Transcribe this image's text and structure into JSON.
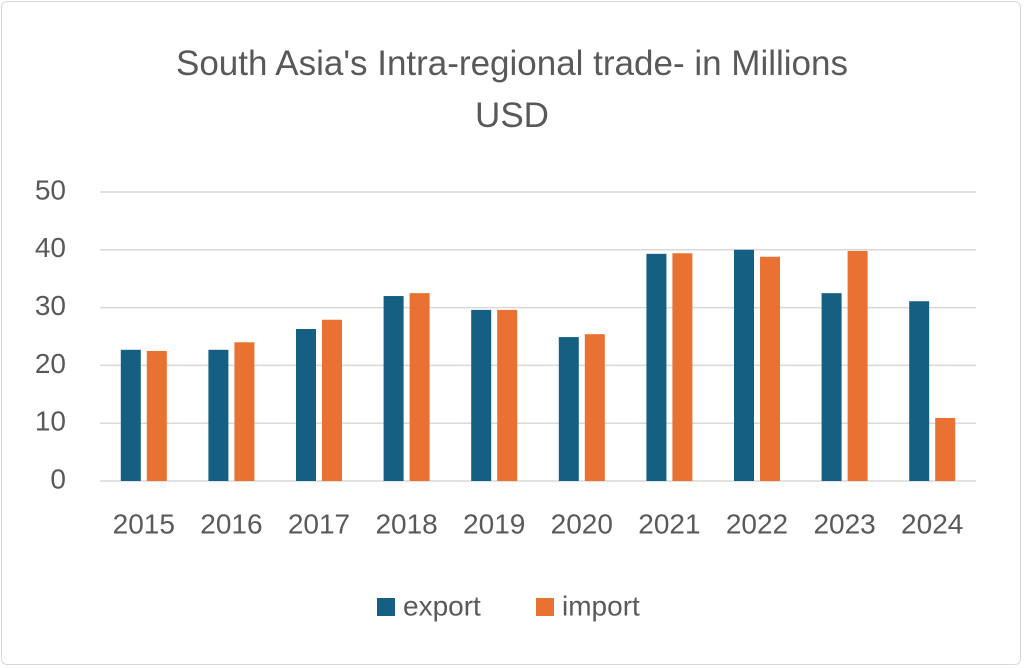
{
  "chart_data": {
    "type": "bar",
    "title": "South Asia's Intra-regional trade- in Millions USD",
    "categories": [
      "2015",
      "2016",
      "2017",
      "2018",
      "2019",
      "2020",
      "2021",
      "2022",
      "2023",
      "2024"
    ],
    "series": [
      {
        "name": "export",
        "color": "#156082",
        "values": [
          22.7,
          22.7,
          26.3,
          32.0,
          29.6,
          24.9,
          39.3,
          40.0,
          32.5,
          31.1
        ]
      },
      {
        "name": "import",
        "color": "#e97132",
        "values": [
          22.5,
          24.0,
          27.9,
          32.5,
          29.6,
          25.4,
          39.4,
          38.8,
          39.8,
          10.9
        ]
      }
    ],
    "ylim": [
      0,
      50
    ],
    "yticks": [
      0,
      10,
      20,
      30,
      40,
      50
    ],
    "grid": true,
    "legend": "bottom"
  }
}
